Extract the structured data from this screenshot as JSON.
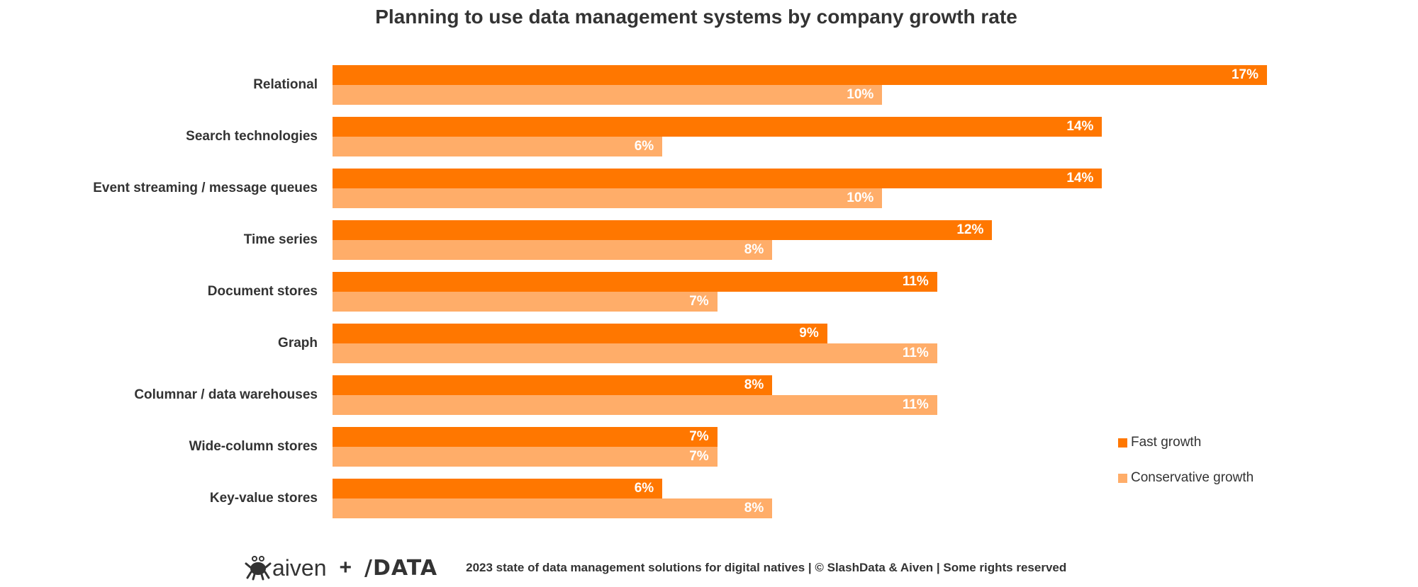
{
  "chart_data": {
    "type": "bar",
    "orientation": "horizontal",
    "title": "Planning to use data management systems by company growth rate",
    "categories": [
      "Relational",
      "Search technologies",
      "Event streaming / message queues",
      "Time series",
      "Document stores",
      "Graph",
      "Columnar / data warehouses",
      "Wide-column stores",
      "Key-value stores"
    ],
    "series": [
      {
        "name": "Fast growth",
        "color": "#FF7700",
        "values": [
          17,
          14,
          14,
          12,
          11,
          9,
          8,
          7,
          6
        ]
      },
      {
        "name": "Conservative growth",
        "color": "#FFAD69",
        "values": [
          10,
          6,
          10,
          8,
          7,
          11,
          11,
          7,
          8
        ]
      }
    ],
    "value_suffix": "%",
    "xlim": [
      0,
      17
    ],
    "grid": false,
    "legend_position": "right"
  },
  "footer": {
    "logo_aiven": "aiven",
    "plus": "+",
    "logo_data": "/DATA",
    "text": "2023 state of data management solutions for digital natives | © SlashData & Aiven | Some rights reserved"
  }
}
